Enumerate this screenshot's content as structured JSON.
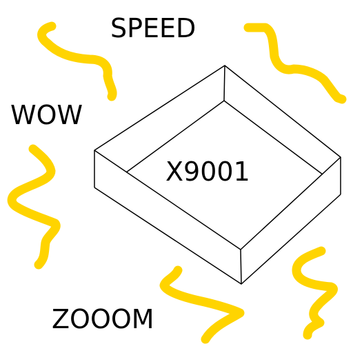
{
  "labels": {
    "speed": "SPEED",
    "wow": "WOW",
    "model": "X9001",
    "zooom": "ZOOOM"
  },
  "colors": {
    "squiggle": "#ffd400",
    "outline": "#000000",
    "background": "#ffffff"
  },
  "icons": {
    "box": "open-box-isometric",
    "motion": "yellow-speed-squiggles"
  }
}
